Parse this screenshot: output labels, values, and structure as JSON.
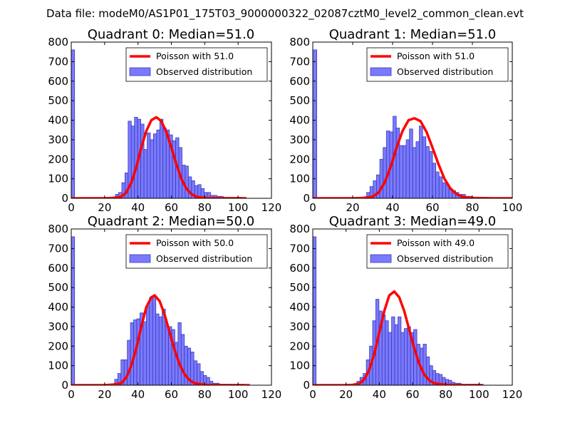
{
  "figure": {
    "suptitle": "Data file: modeM0/AS1P01_175T03_9000000322_02087cztM0_level2_common_clean.evt"
  },
  "colors": {
    "bar_fill": "#7a7aff",
    "bar_edge": "#3a3ab8",
    "poisson_line": "#ff0000",
    "axes": "#000000",
    "background": "#ffffff"
  },
  "chart_data": [
    {
      "type": "bar",
      "title": "Quadrant 0: Median=51.0",
      "xlim": [
        0,
        120
      ],
      "ylim": [
        0,
        800
      ],
      "xticks": [
        0,
        20,
        40,
        60,
        80,
        100,
        120
      ],
      "yticks": [
        0,
        100,
        200,
        300,
        400,
        500,
        600,
        700,
        800
      ],
      "legend": {
        "location": "upper-right",
        "line_label": "Poisson with 51.0",
        "bar_label": "Observed distribution"
      },
      "bins": {
        "start": 0,
        "width": 2,
        "counts": [
          760,
          0,
          0,
          0,
          0,
          0,
          0,
          0,
          0,
          0,
          0,
          0,
          0,
          0,
          0,
          0,
          0,
          0,
          0,
          0,
          0,
          0,
          0,
          0,
          0,
          0,
          0,
          0,
          0,
          0,
          0,
          0,
          0,
          0,
          0,
          0,
          0,
          0,
          0,
          0,
          0,
          0,
          0,
          0,
          0,
          0,
          0,
          0,
          0,
          0,
          0,
          0,
          0,
          0,
          0,
          0,
          0,
          0,
          0,
          0,
          0,
          0,
          0,
          0,
          0,
          0,
          0,
          0,
          0,
          0,
          0,
          0,
          0,
          0,
          0,
          0,
          0,
          0,
          0,
          0,
          0,
          0,
          0,
          0,
          0,
          0,
          0,
          0,
          0,
          0,
          0,
          0,
          0,
          0,
          0,
          0,
          0,
          0,
          0,
          0,
          0,
          0,
          0,
          0,
          0,
          0,
          0,
          0,
          0,
          0,
          0,
          0,
          0,
          0,
          0,
          0,
          0,
          0,
          0,
          0
        ]
      },
      "observed": {
        "x_start": 26.5,
        "bin_width": 1.9,
        "counts": [
          20,
          30,
          80,
          130,
          395,
          370,
          415,
          405,
          380,
          250,
          335,
          300,
          330,
          350,
          405,
          360,
          350,
          325,
          295,
          310,
          260,
          170,
          165,
          110,
          90,
          65,
          70,
          50,
          30,
          30,
          15,
          15,
          10,
          10,
          5,
          5,
          5,
          5,
          5,
          5
        ]
      },
      "poisson": {
        "mu": 51.0,
        "x": [
          0,
          10,
          20,
          25,
          30,
          33,
          36,
          39,
          42,
          45,
          48,
          51,
          54,
          57,
          60,
          63,
          66,
          69,
          72,
          75,
          80,
          90,
          105
        ],
        "y": [
          0,
          0,
          0,
          2,
          8,
          30,
          80,
          160,
          260,
          345,
          400,
          415,
          395,
          340,
          260,
          175,
          100,
          50,
          22,
          8,
          2,
          0,
          0
        ]
      }
    },
    {
      "type": "bar",
      "title": "Quadrant 1: Median=51.0",
      "xlim": [
        0,
        100
      ],
      "ylim": [
        0,
        800
      ],
      "xticks": [
        0,
        20,
        40,
        60,
        80,
        100
      ],
      "yticks": [
        0,
        100,
        200,
        300,
        400,
        500,
        600,
        700,
        800
      ],
      "legend": {
        "location": "upper-right",
        "line_label": "Poisson with 51.0",
        "bar_label": "Observed distribution"
      },
      "bins": {
        "start": 0,
        "width": 2,
        "counts": [
          760
        ]
      },
      "observed": {
        "x_start": 27.0,
        "bin_width": 1.65,
        "counts": [
          30,
          60,
          90,
          120,
          200,
          260,
          345,
          340,
          420,
          360,
          270,
          270,
          300,
          355,
          260,
          290,
          370,
          315,
          265,
          240,
          180,
          135,
          110,
          80,
          70,
          50,
          40,
          30,
          20,
          20,
          10,
          10,
          5,
          5,
          5,
          5
        ]
      },
      "poisson": {
        "mu": 51.0,
        "x": [
          0,
          10,
          20,
          25,
          30,
          33,
          36,
          39,
          42,
          45,
          48,
          51,
          54,
          57,
          60,
          63,
          66,
          69,
          72,
          75,
          80,
          90,
          100
        ],
        "y": [
          0,
          0,
          0,
          2,
          8,
          30,
          80,
          160,
          260,
          345,
          400,
          410,
          395,
          340,
          260,
          175,
          100,
          50,
          22,
          8,
          2,
          0,
          0
        ]
      }
    },
    {
      "type": "bar",
      "title": "Quadrant 2: Median=50.0",
      "xlim": [
        0,
        120
      ],
      "ylim": [
        0,
        800
      ],
      "xticks": [
        0,
        20,
        40,
        60,
        80,
        100,
        120
      ],
      "yticks": [
        0,
        100,
        200,
        300,
        400,
        500,
        600,
        700,
        800
      ],
      "legend": {
        "location": "upper-right",
        "line_label": "Poisson with 50.0",
        "bar_label": "Observed distribution"
      },
      "bins": {
        "start": 0,
        "width": 2,
        "counts": [
          760
        ]
      },
      "observed": {
        "x_start": 26.0,
        "bin_width": 1.9,
        "counts": [
          30,
          60,
          130,
          130,
          230,
          320,
          335,
          340,
          370,
          325,
          405,
          450,
          460,
          365,
          350,
          390,
          310,
          300,
          285,
          220,
          320,
          260,
          200,
          190,
          170,
          125,
          110,
          70,
          50,
          40,
          20,
          10,
          10,
          5,
          5,
          5,
          5,
          5,
          5,
          5,
          5
        ]
      },
      "poisson": {
        "mu": 50.0,
        "x": [
          0,
          10,
          20,
          25,
          30,
          33,
          36,
          39,
          42,
          45,
          48,
          50,
          53,
          56,
          59,
          62,
          65,
          68,
          71,
          74,
          80,
          90,
          107
        ],
        "y": [
          0,
          0,
          0,
          3,
          10,
          40,
          100,
          190,
          300,
          400,
          450,
          460,
          430,
          360,
          270,
          180,
          105,
          55,
          25,
          10,
          2,
          0,
          0
        ]
      }
    },
    {
      "type": "bar",
      "title": "Quadrant 3: Median=49.0",
      "xlim": [
        0,
        120
      ],
      "ylim": [
        0,
        800
      ],
      "xticks": [
        0,
        20,
        40,
        60,
        80,
        100,
        120
      ],
      "yticks": [
        0,
        100,
        200,
        300,
        400,
        500,
        600,
        700,
        800
      ],
      "legend": {
        "location": "upper-right",
        "line_label": "Poisson with 49.0",
        "bar_label": "Observed distribution"
      },
      "bins": {
        "start": 0,
        "width": 2,
        "counts": [
          760
        ]
      },
      "observed": {
        "x_start": 26.5,
        "bin_width": 1.9,
        "counts": [
          20,
          40,
          60,
          130,
          200,
          330,
          440,
          380,
          360,
          330,
          270,
          350,
          310,
          350,
          270,
          290,
          300,
          270,
          285,
          210,
          190,
          210,
          145,
          100,
          75,
          60,
          55,
          40,
          30,
          25,
          15,
          10,
          10,
          5,
          5,
          5,
          5,
          5,
          5,
          5
        ]
      },
      "poisson": {
        "mu": 49.0,
        "x": [
          0,
          10,
          20,
          24,
          28,
          31,
          34,
          37,
          40,
          43,
          46,
          49,
          52,
          55,
          58,
          61,
          64,
          67,
          70,
          73,
          80,
          90,
          102
        ],
        "y": [
          0,
          0,
          0,
          2,
          8,
          30,
          80,
          160,
          270,
          380,
          460,
          480,
          450,
          380,
          285,
          190,
          110,
          55,
          25,
          10,
          2,
          0,
          0
        ]
      }
    }
  ]
}
